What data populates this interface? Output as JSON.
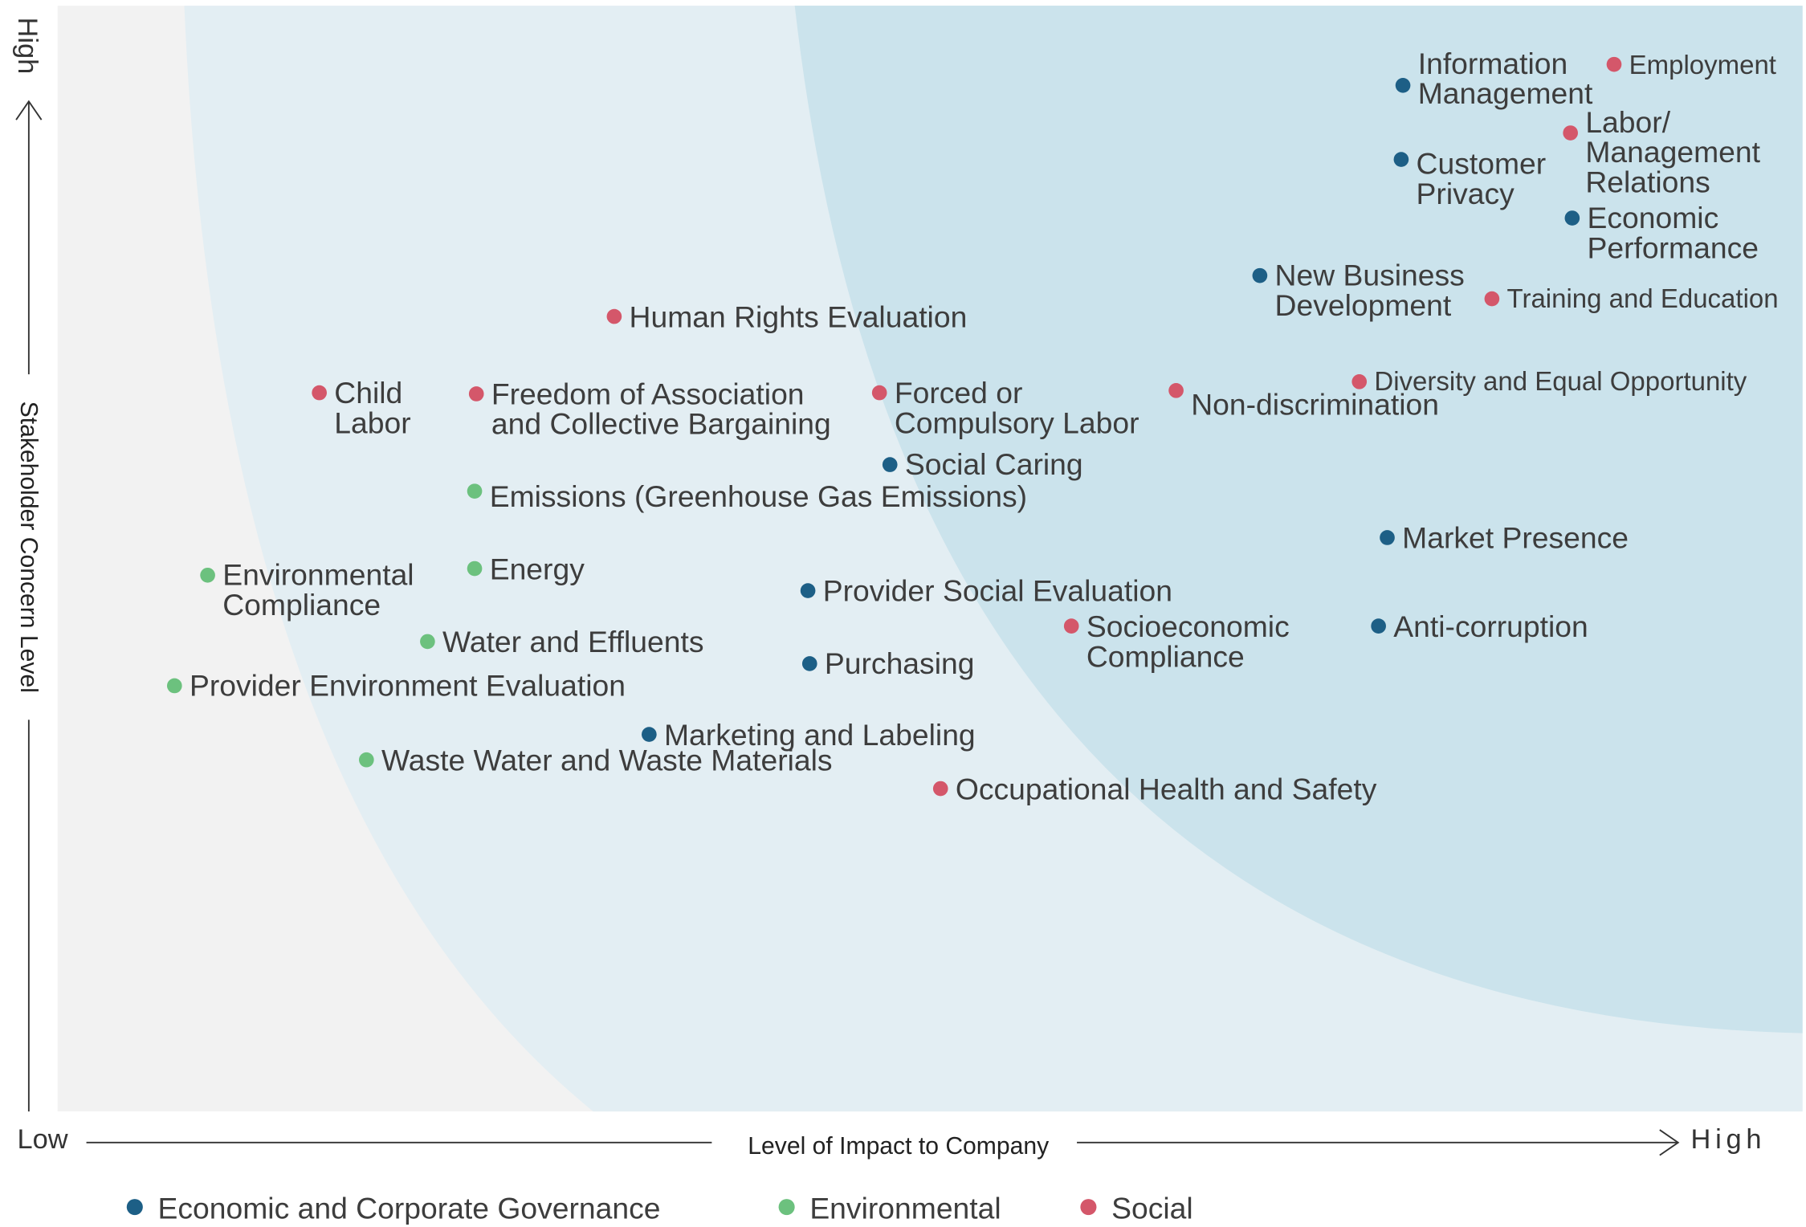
{
  "chart_data": {
    "type": "scatter",
    "x_label": "Level of Impact to Company",
    "y_label": "Stakeholder Concern Level",
    "xlim": [
      0,
      100
    ],
    "ylim": [
      0,
      100
    ],
    "xticks": [
      {
        "value": 0,
        "label": "Low"
      },
      {
        "value": 100,
        "label": "High"
      }
    ],
    "yticks": [
      {
        "value": 100,
        "label": "High"
      }
    ],
    "series": [
      {
        "name": "Economic and Corporate Governance",
        "color": "#1d5f86",
        "labels": [
          "Information\nManagement",
          "Customer\nPrivacy",
          "Economic\nPerformance",
          "New Business\nDevelopment",
          "Social Caring",
          "Market Presence",
          "Provider Social Evaluation",
          "Anti-corruption",
          "Purchasing",
          "Marketing and Labeling"
        ],
        "x": [
          77.1,
          77.0,
          86.8,
          68.9,
          47.7,
          76.2,
          43.0,
          75.7,
          43.1,
          33.9
        ],
        "y": [
          92.8,
          86.1,
          80.8,
          75.6,
          58.5,
          51.9,
          47.1,
          43.9,
          40.5,
          34.1
        ]
      },
      {
        "name": "Environmental",
        "color": "#6cc17e",
        "labels": [
          "Emissions (Greenhouse Gas Emissions)",
          "Environmental\nCompliance",
          "Energy",
          "Water and Effluents",
          "Provider Environment Evaluation",
          "Waste Water and Waste Materials"
        ],
        "x": [
          23.9,
          8.6,
          23.9,
          21.2,
          6.7,
          17.7
        ],
        "y": [
          56.1,
          48.5,
          49.1,
          42.5,
          38.5,
          31.8
        ]
      },
      {
        "name": "Social",
        "color": "#d4576a",
        "labels": [
          "Employment",
          "Labor/\nManagement\nRelations",
          "Training and Education",
          "Human Rights Evaluation",
          "Child\nLabor",
          "Freedom of Association\nand Collective Bargaining",
          "Forced or\nCompulsory Labor",
          "Non-discrimination",
          "Diversity and Equal Opportunity",
          "Socioeconomic\nCompliance",
          "Occupational Health and Safety"
        ],
        "x": [
          89.2,
          86.7,
          82.2,
          31.9,
          15.0,
          24.0,
          47.1,
          64.1,
          74.6,
          58.1,
          50.6
        ],
        "y": [
          94.7,
          88.5,
          73.5,
          71.9,
          65.0,
          64.9,
          65.0,
          65.2,
          66.0,
          43.9,
          29.2
        ]
      }
    ]
  }
}
